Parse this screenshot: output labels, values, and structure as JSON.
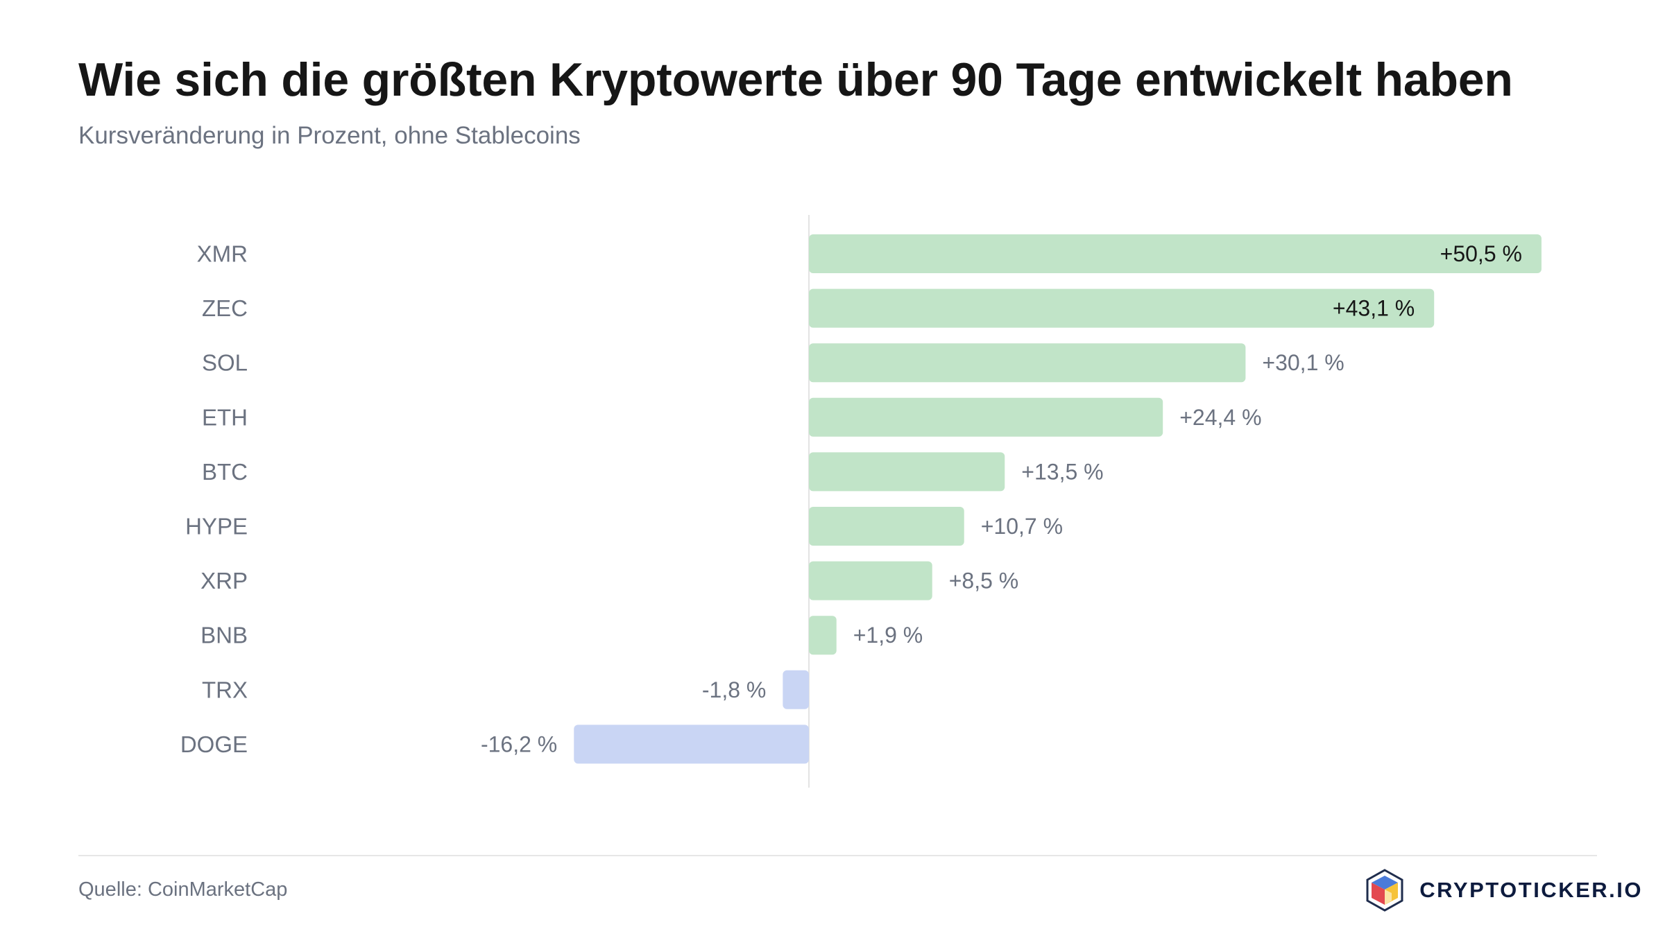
{
  "title": "Wie sich die größten Kryptowerte über 90 Tage entwickelt haben",
  "subtitle": "Kursveränderung in Prozent, ohne Stablecoins",
  "source": "Quelle: CoinMarketCap",
  "brand": {
    "name": "CRYPTOTICKER.IO",
    "logo_icon": "cube-logo-icon"
  },
  "colors": {
    "positive": "#c1e4c8",
    "negative": "#c9d5f4",
    "category_label": "#6b7280",
    "value_label": "#6b7280",
    "value_label_inside": "#161616",
    "zero_line": "#e3e3e3"
  },
  "chart_data": {
    "type": "bar",
    "orientation": "horizontal",
    "title": "Wie sich die größten Kryptowerte über 90 Tage entwickelt haben",
    "subtitle": "Kursveränderung in Prozent, ohne Stablecoins",
    "categories": [
      "XMR",
      "ZEC",
      "SOL",
      "ETH",
      "BTC",
      "HYPE",
      "XRP",
      "BNB",
      "TRX",
      "DOGE"
    ],
    "values": [
      50.5,
      43.1,
      30.1,
      24.4,
      13.5,
      10.7,
      8.5,
      1.9,
      -1.8,
      -16.2
    ],
    "value_labels": [
      "+50,5 %",
      "+43,1 %",
      "+30,1 %",
      "+24,4 %",
      "+13,5 %",
      "+10,7 %",
      "+8,5 %",
      "+1,9 %",
      "-1,8 %",
      "-16,2 %"
    ],
    "xlim": [
      -50.5,
      50.5
    ],
    "grid": false,
    "legend": "none",
    "source": "Quelle: CoinMarketCap"
  }
}
